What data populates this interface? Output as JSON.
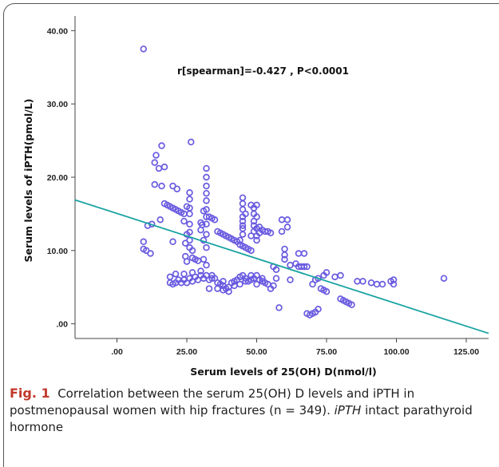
{
  "chart_data": {
    "type": "scatter",
    "xlabel": "Serum levels of 25(OH) D(nmol/l)",
    "ylabel": "Serum levels of iPTH(pmol/L)",
    "annotation": "r[spearman]=-0.427 , P<0.0001",
    "xlim": [
      -15,
      133
    ],
    "ylim": [
      -2,
      42
    ],
    "xticks": [
      0,
      25,
      50,
      75,
      100,
      125
    ],
    "yticks": [
      0,
      10,
      20,
      30,
      40
    ],
    "xtick_labels": [
      ".00",
      "25.00",
      "50.00",
      "75.00",
      "100.00",
      "125.00"
    ],
    "ytick_labels": [
      ".00",
      "10.00",
      "20.00",
      "30.00",
      "40.00"
    ],
    "grid": false,
    "marker_color": "#6a5be0",
    "fit_line_color": "#1aa3a3",
    "fit_line": {
      "x": [
        -15,
        133
      ],
      "y": [
        16.9,
        -1.3
      ]
    },
    "points": [
      [
        9.5,
        37.5
      ],
      [
        9.5,
        11.2
      ],
      [
        9.5,
        10.2
      ],
      [
        10.5,
        10.0
      ],
      [
        11,
        13.4
      ],
      [
        12,
        9.6
      ],
      [
        12.5,
        13.6
      ],
      [
        13.5,
        19.0
      ],
      [
        13.5,
        22.0
      ],
      [
        14,
        23.0
      ],
      [
        15,
        21.2
      ],
      [
        16,
        24.3
      ],
      [
        16,
        18.8
      ],
      [
        17,
        21.4
      ],
      [
        15.5,
        14.2
      ],
      [
        17,
        16.4
      ],
      [
        18,
        16.2
      ],
      [
        19,
        16.0
      ],
      [
        20,
        15.8
      ],
      [
        21,
        15.6
      ],
      [
        22,
        15.4
      ],
      [
        23,
        15.2
      ],
      [
        24,
        15.0
      ],
      [
        20,
        11.2
      ],
      [
        20,
        18.8
      ],
      [
        21.5,
        18.4
      ],
      [
        25,
        16.0
      ],
      [
        24,
        14.0
      ],
      [
        25,
        12.2
      ],
      [
        26.5,
        24.8
      ],
      [
        26,
        17.9
      ],
      [
        26,
        17.0
      ],
      [
        26,
        15.8
      ],
      [
        26,
        15.0
      ],
      [
        26,
        13.6
      ],
      [
        26,
        12.5
      ],
      [
        26,
        11.4
      ],
      [
        26,
        10.4
      ],
      [
        24.5,
        11.0
      ],
      [
        24.5,
        9.2
      ],
      [
        25,
        8.5
      ],
      [
        27,
        10.0
      ],
      [
        27,
        9.0
      ],
      [
        28,
        8.8
      ],
      [
        29,
        8.6
      ],
      [
        30,
        12.8
      ],
      [
        32,
        21.2
      ],
      [
        32,
        20.0
      ],
      [
        32,
        18.8
      ],
      [
        32,
        17.8
      ],
      [
        32,
        16.8
      ],
      [
        32,
        15.6
      ],
      [
        32,
        14.6
      ],
      [
        32,
        13.6
      ],
      [
        31,
        15.4
      ],
      [
        32,
        12.2
      ],
      [
        31,
        11.4
      ],
      [
        32,
        10.4
      ],
      [
        31,
        8.8
      ],
      [
        32,
        8.0
      ],
      [
        33,
        14.6
      ],
      [
        34,
        14.4
      ],
      [
        35,
        14.2
      ],
      [
        30,
        13.8
      ],
      [
        30.5,
        13.5
      ],
      [
        36,
        12.6
      ],
      [
        37,
        12.4
      ],
      [
        38,
        12.2
      ],
      [
        39,
        12.0
      ],
      [
        40,
        11.8
      ],
      [
        41,
        11.6
      ],
      [
        42,
        11.4
      ],
      [
        43,
        11.2
      ],
      [
        44,
        10.8
      ],
      [
        45,
        10.6
      ],
      [
        46,
        10.4
      ],
      [
        47,
        10.2
      ],
      [
        48,
        10.0
      ],
      [
        45,
        13.0
      ],
      [
        45,
        12.2
      ],
      [
        44,
        11.4
      ],
      [
        45,
        17.2
      ],
      [
        45,
        16.4
      ],
      [
        45,
        15.6
      ],
      [
        45,
        14.6
      ],
      [
        45,
        14.0
      ],
      [
        45,
        13.4
      ],
      [
        46,
        15.0
      ],
      [
        49,
        15.8
      ],
      [
        48,
        16.2
      ],
      [
        49,
        15.0
      ],
      [
        49,
        14.0
      ],
      [
        49,
        13.4
      ],
      [
        49,
        12.6
      ],
      [
        48,
        12.0
      ],
      [
        50,
        16.2
      ],
      [
        50,
        14.6
      ],
      [
        50,
        13.0
      ],
      [
        50,
        12.0
      ],
      [
        50,
        11.4
      ],
      [
        51,
        13.2
      ],
      [
        51,
        12.4
      ],
      [
        52,
        12.8
      ],
      [
        53,
        12.6
      ],
      [
        54,
        12.6
      ],
      [
        55,
        12.4
      ],
      [
        56,
        7.8
      ],
      [
        57,
        7.4
      ],
      [
        57,
        6.2
      ],
      [
        58,
        2.2
      ],
      [
        59,
        12.6
      ],
      [
        59,
        14.2
      ],
      [
        61,
        14.2
      ],
      [
        61,
        13.2
      ],
      [
        60,
        10.2
      ],
      [
        60,
        9.4
      ],
      [
        60,
        8.8
      ],
      [
        62,
        6.0
      ],
      [
        62,
        8.0
      ],
      [
        64,
        8.2
      ],
      [
        65,
        9.6
      ],
      [
        65,
        7.8
      ],
      [
        66,
        7.8
      ],
      [
        67,
        9.6
      ],
      [
        67,
        7.8
      ],
      [
        68,
        7.8
      ],
      [
        68,
        1.4
      ],
      [
        69,
        1.2
      ],
      [
        70,
        1.4
      ],
      [
        71,
        1.6
      ],
      [
        72,
        2.0
      ],
      [
        70,
        5.4
      ],
      [
        71,
        6.0
      ],
      [
        72,
        6.2
      ],
      [
        73,
        4.8
      ],
      [
        74,
        6.6
      ],
      [
        74,
        4.6
      ],
      [
        75,
        4.4
      ],
      [
        75,
        7.0
      ],
      [
        78,
        6.4
      ],
      [
        80,
        6.6
      ],
      [
        80,
        3.4
      ],
      [
        81,
        3.2
      ],
      [
        82,
        3.0
      ],
      [
        83,
        2.8
      ],
      [
        84,
        2.6
      ],
      [
        86,
        5.8
      ],
      [
        88,
        5.8
      ],
      [
        91,
        5.6
      ],
      [
        93,
        5.4
      ],
      [
        95,
        5.4
      ],
      [
        98,
        5.8
      ],
      [
        99,
        5.4
      ],
      [
        99,
        6.0
      ],
      [
        117,
        6.2
      ],
      [
        19,
        5.6
      ],
      [
        20,
        5.4
      ],
      [
        21,
        5.6
      ],
      [
        22,
        6.0
      ],
      [
        23,
        5.6
      ],
      [
        24,
        6.0
      ],
      [
        25,
        5.6
      ],
      [
        26,
        6.2
      ],
      [
        27,
        5.8
      ],
      [
        28,
        6.4
      ],
      [
        29,
        6.0
      ],
      [
        30,
        6.6
      ],
      [
        31,
        6.2
      ],
      [
        32,
        6.6
      ],
      [
        33,
        6.0
      ],
      [
        34,
        6.6
      ],
      [
        35,
        6.2
      ],
      [
        36,
        5.6
      ],
      [
        37,
        5.4
      ],
      [
        38,
        5.2
      ],
      [
        39,
        4.8
      ],
      [
        40,
        5.0
      ],
      [
        41,
        5.6
      ],
      [
        42,
        5.2
      ],
      [
        43,
        6.0
      ],
      [
        44,
        6.4
      ],
      [
        45,
        6.6
      ],
      [
        46,
        6.2
      ],
      [
        47,
        5.8
      ],
      [
        48,
        6.6
      ],
      [
        49,
        6.2
      ],
      [
        50,
        6.6
      ],
      [
        51,
        6.0
      ],
      [
        52,
        5.8
      ],
      [
        53,
        5.6
      ],
      [
        54,
        5.4
      ],
      [
        19,
        6.4
      ],
      [
        21,
        6.8
      ],
      [
        24,
        6.8
      ],
      [
        27,
        7.0
      ],
      [
        30,
        7.2
      ],
      [
        34,
        6.2
      ],
      [
        38,
        4.6
      ],
      [
        40,
        4.4
      ],
      [
        36,
        4.8
      ],
      [
        55,
        4.8
      ],
      [
        56,
        5.2
      ],
      [
        33,
        4.8
      ],
      [
        44,
        5.4
      ],
      [
        46,
        5.8
      ],
      [
        48,
        6.0
      ],
      [
        52,
        6.2
      ],
      [
        50,
        5.4
      ],
      [
        42,
        5.8
      ],
      [
        38,
        5.8
      ]
    ]
  },
  "caption": {
    "fig_label": "Fig. 1",
    "text_main": "Correlation between the serum 25(OH) D levels and iPTH in postmenopausal women with hip fractures (n = 349).",
    "abbr_term": "iPTH",
    "abbr_def": "intact parathyroid hormone"
  }
}
